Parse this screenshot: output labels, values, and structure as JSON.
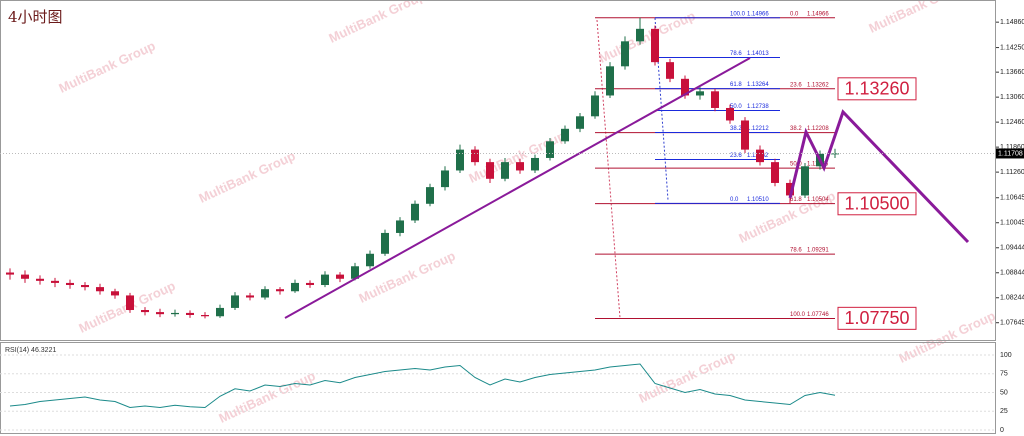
{
  "chart_data": {
    "type": "candlestick",
    "title": "4小时图",
    "watermark": "MultiBank Group",
    "ylim": [
      1.0723,
      1.152
    ],
    "yticks": [
      {
        "value": 1.1486,
        "label": "1.14860"
      },
      {
        "value": 1.1425,
        "label": "1.14250"
      },
      {
        "value": 1.1366,
        "label": "1.13660"
      },
      {
        "value": 1.1306,
        "label": "1.13060"
      },
      {
        "value": 1.1246,
        "label": "1.12460"
      },
      {
        "value": 1.1186,
        "label": "1.11860"
      },
      {
        "value": 1.1126,
        "label": "1.11260"
      },
      {
        "value": 1.10645,
        "label": "1.10645"
      },
      {
        "value": 1.10045,
        "label": "1.10045"
      },
      {
        "value": 1.09444,
        "label": "1.09444"
      },
      {
        "value": 1.08844,
        "label": "1.08844"
      },
      {
        "value": 1.08244,
        "label": "1.08244"
      },
      {
        "value": 1.07645,
        "label": "1.07645"
      }
    ],
    "current_price": {
      "value": 1.11708,
      "label": "1.11708"
    },
    "up_color": "#1f6f4a",
    "down_color": "#c8103a",
    "ohlc": [
      [
        1.0885,
        1.0895,
        1.0868,
        1.088
      ],
      [
        1.088,
        1.089,
        1.086,
        1.087
      ],
      [
        1.087,
        1.0878,
        1.0856,
        1.0865
      ],
      [
        1.0865,
        1.0872,
        1.085,
        1.086
      ],
      [
        1.086,
        1.0868,
        1.0846,
        1.0855
      ],
      [
        1.0855,
        1.0862,
        1.0842,
        1.085
      ],
      [
        1.085,
        1.0858,
        1.0832,
        1.084
      ],
      [
        1.084,
        1.0846,
        1.0822,
        1.083
      ],
      [
        1.083,
        1.0836,
        1.0788,
        1.0795
      ],
      [
        1.0795,
        1.0802,
        1.0782,
        1.079
      ],
      [
        1.079,
        1.0798,
        1.0778,
        1.0785
      ],
      [
        1.0785,
        1.0796,
        1.0779,
        1.0788
      ],
      [
        1.0788,
        1.0794,
        1.0776,
        1.0783
      ],
      [
        1.0783,
        1.079,
        1.0775,
        1.078
      ],
      [
        1.078,
        1.0808,
        1.0776,
        1.08
      ],
      [
        1.08,
        1.0838,
        1.0795,
        1.083
      ],
      [
        1.083,
        1.0836,
        1.0818,
        1.0825
      ],
      [
        1.0825,
        1.0852,
        1.082,
        1.0845
      ],
      [
        1.0845,
        1.085,
        1.0832,
        1.084
      ],
      [
        1.084,
        1.0868,
        1.0836,
        1.086
      ],
      [
        1.086,
        1.0866,
        1.0848,
        1.0855
      ],
      [
        1.0855,
        1.0888,
        1.085,
        1.088
      ],
      [
        1.088,
        1.0886,
        1.0862,
        1.087
      ],
      [
        1.087,
        1.0908,
        1.0866,
        1.09
      ],
      [
        1.09,
        1.0938,
        1.0894,
        1.093
      ],
      [
        1.093,
        1.0988,
        1.0925,
        1.098
      ],
      [
        1.098,
        1.1018,
        1.0972,
        1.101
      ],
      [
        1.101,
        1.1058,
        1.1004,
        1.105
      ],
      [
        1.105,
        1.1098,
        1.1044,
        1.109
      ],
      [
        1.109,
        1.114,
        1.1082,
        1.113
      ],
      [
        1.113,
        1.1192,
        1.1124,
        1.118
      ],
      [
        1.118,
        1.1188,
        1.1142,
        1.115
      ],
      [
        1.115,
        1.1158,
        1.11,
        1.111
      ],
      [
        1.111,
        1.116,
        1.1104,
        1.115
      ],
      [
        1.115,
        1.1158,
        1.1122,
        1.113
      ],
      [
        1.113,
        1.1168,
        1.1124,
        1.116
      ],
      [
        1.116,
        1.1208,
        1.1154,
        1.12
      ],
      [
        1.12,
        1.1238,
        1.1194,
        1.123
      ],
      [
        1.123,
        1.1268,
        1.1222,
        1.126
      ],
      [
        1.126,
        1.132,
        1.1254,
        1.131
      ],
      [
        1.131,
        1.139,
        1.1304,
        1.138
      ],
      [
        1.138,
        1.1452,
        1.1372,
        1.144
      ],
      [
        1.144,
        1.1497,
        1.1432,
        1.147
      ],
      [
        1.147,
        1.1478,
        1.1382,
        1.139
      ],
      [
        1.139,
        1.1398,
        1.1342,
        1.135
      ],
      [
        1.135,
        1.1358,
        1.1302,
        1.131
      ],
      [
        1.131,
        1.133,
        1.13,
        1.132
      ],
      [
        1.132,
        1.1326,
        1.1272,
        1.128
      ],
      [
        1.128,
        1.1288,
        1.1242,
        1.125
      ],
      [
        1.125,
        1.1258,
        1.1172,
        1.118
      ],
      [
        1.118,
        1.119,
        1.1142,
        1.115
      ],
      [
        1.115,
        1.1158,
        1.1092,
        1.11
      ],
      [
        1.11,
        1.1108,
        1.1051,
        1.107
      ],
      [
        1.107,
        1.1148,
        1.1064,
        1.114
      ],
      [
        1.114,
        1.1178,
        1.1132,
        1.117
      ],
      [
        1.117,
        1.1182,
        1.116,
        1.1171
      ]
    ],
    "fib_blue": [
      {
        "level": "100.0",
        "value": 1.14966,
        "label": "1.14966"
      },
      {
        "level": "78.6",
        "value": 1.14013,
        "label": "1.14013"
      },
      {
        "level": "61.8",
        "value": 1.13264,
        "label": "1.13264"
      },
      {
        "level": "50.0",
        "value": 1.12738,
        "label": "1.12738"
      },
      {
        "level": "38.2",
        "value": 1.12212,
        "label": "1.12212"
      },
      {
        "level": "23.6",
        "value": 1.11562,
        "label": "1.11562"
      },
      {
        "level": "0.0",
        "value": 1.1051,
        "label": "1.10510"
      }
    ],
    "fib_red": [
      {
        "level": "0.0",
        "value": 1.14966,
        "label": "1.14966"
      },
      {
        "level": "23.6",
        "value": 1.13262,
        "label": "1.13262"
      },
      {
        "level": "38.2",
        "value": 1.12208,
        "label": "1.12208"
      },
      {
        "level": "50.0",
        "value": 1.11356,
        "label": "1.11356"
      },
      {
        "level": "61.8",
        "value": 1.10504,
        "label": "1.10504"
      },
      {
        "level": "78.6",
        "value": 1.09291,
        "label": "1.09291"
      },
      {
        "level": "100.0",
        "value": 1.07746,
        "label": "1.07746"
      }
    ],
    "annotations": [
      {
        "value": 1.1326,
        "label": "1.13260"
      },
      {
        "value": 1.105,
        "label": "1.10500"
      },
      {
        "value": 1.0775,
        "label": "1.07750"
      }
    ],
    "rsi": {
      "label": "RSI(14) 46.3221",
      "color": "#1b8a8a",
      "ylim": [
        0,
        100
      ],
      "yticks": [
        100,
        75,
        50,
        25,
        0
      ],
      "values": [
        32,
        34,
        38,
        40,
        42,
        44,
        40,
        38,
        30,
        32,
        30,
        33,
        31,
        30,
        45,
        55,
        52,
        60,
        58,
        62,
        60,
        66,
        63,
        70,
        74,
        78,
        80,
        82,
        80,
        84,
        86,
        70,
        60,
        68,
        64,
        70,
        74,
        76,
        78,
        80,
        84,
        86,
        88,
        62,
        56,
        50,
        54,
        48,
        46,
        40,
        38,
        36,
        34,
        46,
        50,
        46.3221
      ]
    }
  }
}
